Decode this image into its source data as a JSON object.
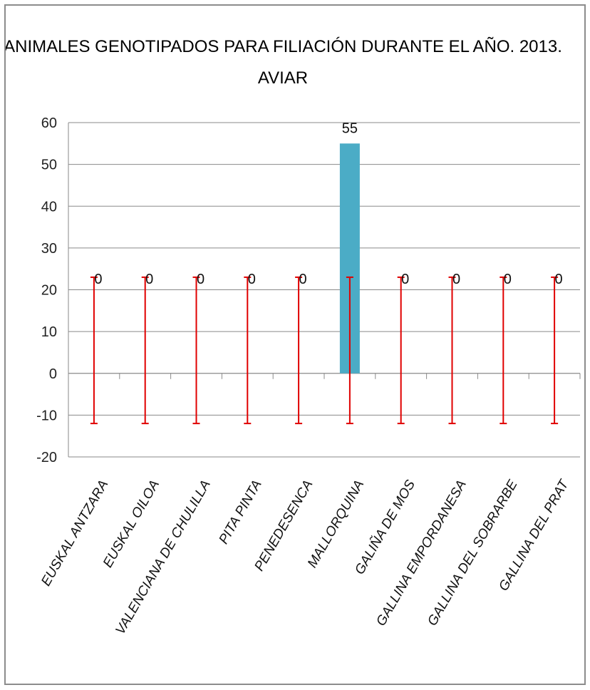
{
  "chart_data": {
    "type": "bar",
    "title": "ANIMALES GENOTIPADOS PARA FILIACIÓN DURANTE EL AÑO. 2013.",
    "subtitle": "AVIAR",
    "categories": [
      "EUSKAL ANTZARA",
      "EUSKAL OILOA",
      "VALENCIANA DE CHULILLA",
      "PITA PINTA",
      "PENEDESENCA",
      "MALLORQUINA",
      "GALIÑA DE MOS",
      "GALLINA EMPORDANESA",
      "GALLINA DEL SOBRARBE",
      "GALLINA DEL PRAT"
    ],
    "values": [
      0,
      0,
      0,
      0,
      0,
      55,
      0,
      0,
      0,
      0
    ],
    "data_labels": [
      "0",
      "0",
      "0",
      "0",
      "0",
      "55",
      "0",
      "0",
      "0",
      "0"
    ],
    "error_bars": {
      "low": -12,
      "high": 23,
      "color": "#e00000"
    },
    "ylim": [
      -20,
      60
    ],
    "yticks": [
      60,
      50,
      40,
      30,
      20,
      10,
      0,
      -10,
      -20
    ],
    "grid": true,
    "legend": "none",
    "bar_color": "#4bacc6",
    "xlabel": "",
    "ylabel": ""
  }
}
